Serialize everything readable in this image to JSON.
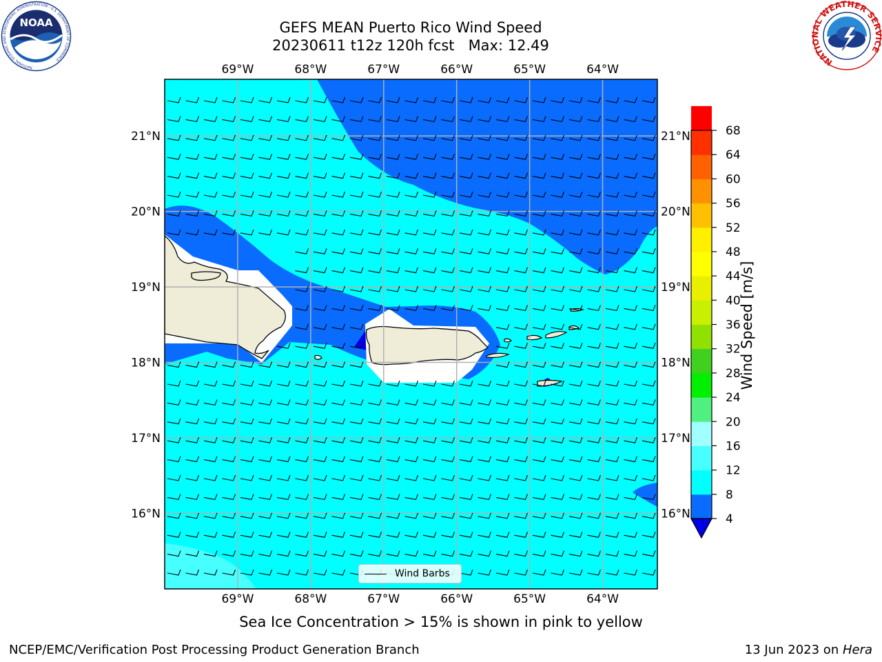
{
  "header": {
    "title_line1": "GEFS MEAN Puerto Rico Wind Speed",
    "title_line2": "20230611 t12z 120h fcst   Max: 12.49"
  },
  "logos": {
    "left": "noaa-logo",
    "right": "nws-logo",
    "right_ring_text": "NATIONAL WEATHER SERVICE",
    "left_ring_text": "NATIONAL OCEANIC AND ATMOSPHERIC ADMINISTRATION - U.S. DEPARTMENT OF COMMERCE",
    "left_wordmark": "NOAA"
  },
  "map": {
    "lon_labels": [
      "69°W",
      "68°W",
      "67°W",
      "66°W",
      "65°W",
      "64°W"
    ],
    "lat_labels": [
      "21°N",
      "20°N",
      "19°N",
      "18°N",
      "17°N",
      "16°N"
    ],
    "lon_values": [
      -69,
      -68,
      -67,
      -66,
      -65,
      -64
    ],
    "lat_values": [
      21,
      20,
      19,
      18,
      17,
      16
    ],
    "extent": {
      "lon_min": -70,
      "lon_max": -63.25,
      "lat_min": 15,
      "lat_max": 21.75
    },
    "colors": {
      "speed_4_8": "#0a6cff",
      "speed_8_12": "#00ffff",
      "speed_12_16": "#48ffff",
      "below_4": "#0000e6",
      "land": "#efedd8",
      "gridline": "#b0b0b0"
    },
    "wind_barbs_legend": "Wind Barbs"
  },
  "colorbar": {
    "label": "Wind Speed [m/s]",
    "ticks": [
      4,
      8,
      12,
      16,
      20,
      24,
      28,
      32,
      36,
      40,
      44,
      48,
      52,
      56,
      60,
      64,
      68
    ],
    "colors": [
      "#0a6cff",
      "#00ffff",
      "#48ffff",
      "#a0ffff",
      "#50f080",
      "#00f000",
      "#40d020",
      "#90e000",
      "#c8f000",
      "#e8f000",
      "#ffff00",
      "#fff000",
      "#ffc000",
      "#ff9000",
      "#ff6000",
      "#ff3000",
      "#ff0000"
    ],
    "extend_min_color": "#0000e6"
  },
  "caption": "Sea Ice Concentration > 15% is shown in pink to yellow",
  "footer": {
    "left": "NCEP/EMC/Verification Post Processing Product Generation Branch",
    "right_prefix": "13 Jun 2023 on ",
    "right_host": "Hera"
  }
}
